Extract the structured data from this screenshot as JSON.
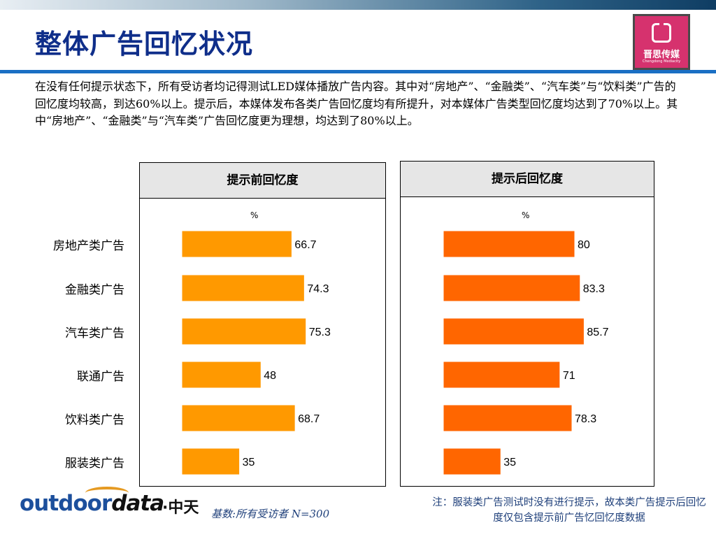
{
  "title": "整体广告回忆状况",
  "logo": {
    "brand_text": "晋思传媒",
    "brand_sub": "Chengdong Mediacity"
  },
  "intro_text": "在没有任何提示状态下，所有受访者均记得测试LED媒体播放广告内容。其中对“房地产”、“金融类”、“汽车类”与“饮料类”广告的回忆度均较高，到达60%以上。提示后，本媒体发布各类广告回忆度均有所提升，对本媒体广告类型回忆度均达到了70%以上。其中“房地产”、“金融类”与“汽车类”广告回忆度更为理想，均达到了80%以上。",
  "categories": [
    "房地产类广告",
    "金融类广告",
    "汽车类广告",
    "联通广告",
    "饮料类广告",
    "服装类广告"
  ],
  "chart_data": [
    {
      "type": "bar",
      "orientation": "horizontal",
      "title": "提示前回忆度",
      "unit": "%",
      "categories": [
        "房地产类广告",
        "金融类广告",
        "汽车类广告",
        "联通广告",
        "饮料类广告",
        "服装类广告"
      ],
      "values": [
        66.7,
        74.3,
        75.3,
        48,
        68.7,
        35
      ],
      "value_labels": [
        "66.7",
        "74.3",
        "75.3",
        "48",
        "68.7",
        "35"
      ],
      "color": "#FF9900",
      "xlim": [
        0,
        100
      ],
      "grid": false
    },
    {
      "type": "bar",
      "orientation": "horizontal",
      "title": "提示后回忆度",
      "unit": "%",
      "categories": [
        "房地产类广告",
        "金融类广告",
        "汽车类广告",
        "联通广告",
        "饮料类广告",
        "服装类广告"
      ],
      "values": [
        80,
        83.3,
        85.7,
        71,
        78.3,
        35
      ],
      "value_labels": [
        "80",
        "83.3",
        "85.7",
        "71",
        "78.3",
        "35"
      ],
      "color": "#FF6600",
      "xlim": [
        0,
        100
      ],
      "grid": false
    }
  ],
  "footer": {
    "company_logo_en_1": "outdoor",
    "company_logo_en_2": "data",
    "company_logo_cn": "·中天",
    "base_note": "基数:所有受访者   N=300",
    "note": "注：服装类广告测试时没有进行提示，故本类广告提示后回忆度仅包含提示前广告忆回忆度数据"
  },
  "colors": {
    "title": "#0f2e8a",
    "rule": "#1a6fc4",
    "note": "#1e3f7a"
  }
}
